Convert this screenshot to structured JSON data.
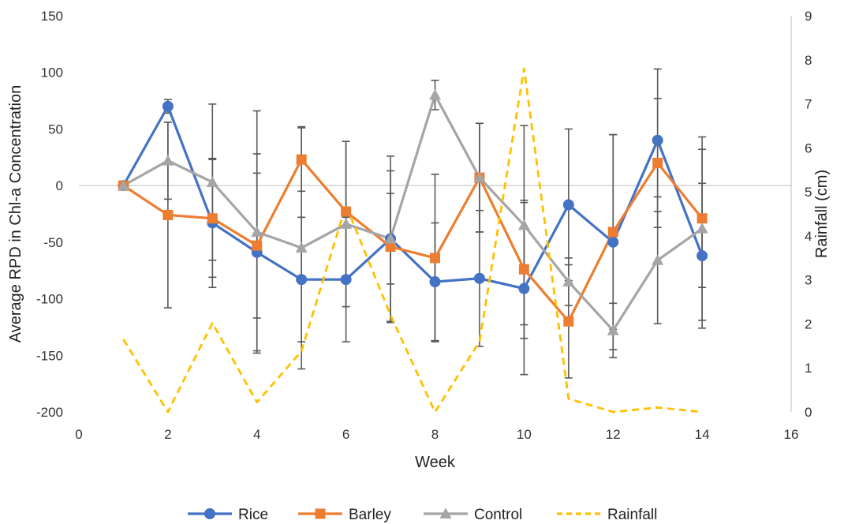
{
  "chart_data": {
    "type": "line",
    "xlabel": "Week",
    "ylabel": "Average RPD in Chl-a Concentration",
    "y2label": "Rainfall (cm)",
    "xlim": [
      0,
      16
    ],
    "ylim": [
      -200,
      150
    ],
    "y2lim": [
      0,
      9
    ],
    "xticks": [
      "0",
      "2",
      "4",
      "6",
      "8",
      "10",
      "12",
      "14",
      "16"
    ],
    "yticks": [
      "150",
      "100",
      "50",
      "0",
      "-50",
      "-100",
      "-150",
      "-200"
    ],
    "y2ticks": [
      "9",
      "8",
      "7",
      "6",
      "5",
      "4",
      "3",
      "2",
      "1",
      "0"
    ],
    "grid": false,
    "legend_position": "bottom",
    "series": [
      {
        "name": "Rice",
        "axis": "left",
        "color": "#4472C4",
        "marker": "circle",
        "x": [
          1,
          2,
          3,
          4,
          5,
          6,
          7,
          8,
          9,
          10,
          11,
          12,
          13,
          14
        ],
        "y": [
          0,
          70,
          -33,
          -59,
          -83,
          -83,
          -47,
          -85,
          -82,
          -91,
          -17,
          -50,
          40,
          -62
        ],
        "err": [
          0,
          6,
          57,
          87,
          55,
          55,
          40,
          52,
          60,
          76,
          67,
          95,
          63,
          64
        ]
      },
      {
        "name": "Barley",
        "axis": "left",
        "color": "#ED7D31",
        "marker": "square",
        "x": [
          1,
          2,
          3,
          4,
          5,
          6,
          7,
          8,
          9,
          10,
          11,
          12,
          13,
          14
        ],
        "y": [
          0,
          -26,
          -29,
          -53,
          23,
          -23,
          -54,
          -64,
          7,
          -74,
          -120,
          -41,
          20,
          -29
        ],
        "err": [
          0,
          82,
          52,
          64,
          28,
          62,
          67,
          74,
          48,
          61,
          50,
          86,
          57,
          61
        ]
      },
      {
        "name": "Control",
        "axis": "left",
        "color": "#A5A5A5",
        "marker": "triangle",
        "x": [
          1,
          2,
          3,
          4,
          5,
          6,
          7,
          8,
          9,
          10,
          11,
          12,
          13,
          14
        ],
        "y": [
          0,
          22,
          3,
          -41,
          -55,
          -34,
          -47,
          80,
          7,
          -35,
          -85,
          -128,
          -66,
          -38
        ],
        "err": [
          0,
          34,
          69,
          107,
          107,
          73,
          73,
          13,
          48,
          88,
          21,
          24,
          56,
          81
        ]
      },
      {
        "name": "Rainfall",
        "axis": "right",
        "color": "#FFC000",
        "dashed": true,
        "x": [
          1,
          2,
          3,
          4,
          5,
          6,
          7,
          8,
          9,
          10,
          11,
          12,
          13,
          14
        ],
        "y": [
          1.65,
          0,
          2.02,
          0.22,
          1.38,
          4.7,
          2.2,
          0,
          1.6,
          7.8,
          0.3,
          0,
          0.1,
          0
        ]
      }
    ]
  }
}
